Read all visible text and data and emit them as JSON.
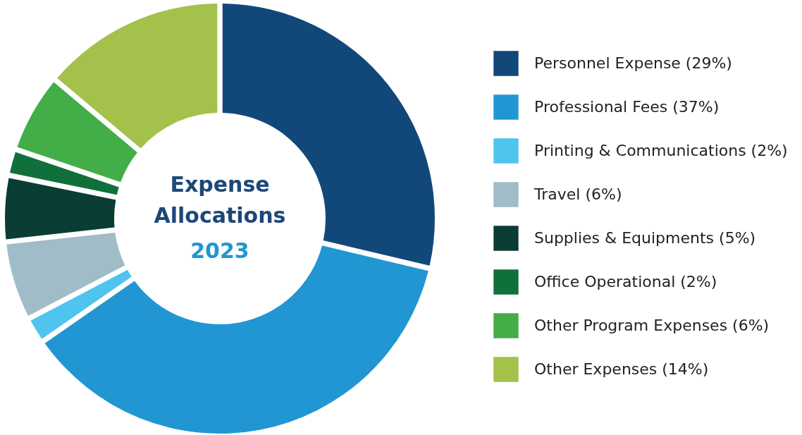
{
  "chart_data": {
    "type": "donut",
    "title": "Expense Allocations",
    "subtitle": "2023",
    "categories": [
      "Personnel Expense (29%)",
      "Professional Fees (37%)",
      "Printing & Communications (2%)",
      "Travel (6%)",
      "Supplies & Equipments (5%)",
      "Office Operational (2%)",
      "Other Program Expenses (6%)",
      "Other Expenses (14%)"
    ],
    "values": [
      29,
      37,
      2,
      6,
      5,
      2,
      6,
      14
    ],
    "colors": [
      "#12477a",
      "#2196d3",
      "#4fc4ef",
      "#a0bcc8",
      "#0a3d33",
      "#10703c",
      "#43ad48",
      "#a4c14b"
    ],
    "legend": "right"
  }
}
